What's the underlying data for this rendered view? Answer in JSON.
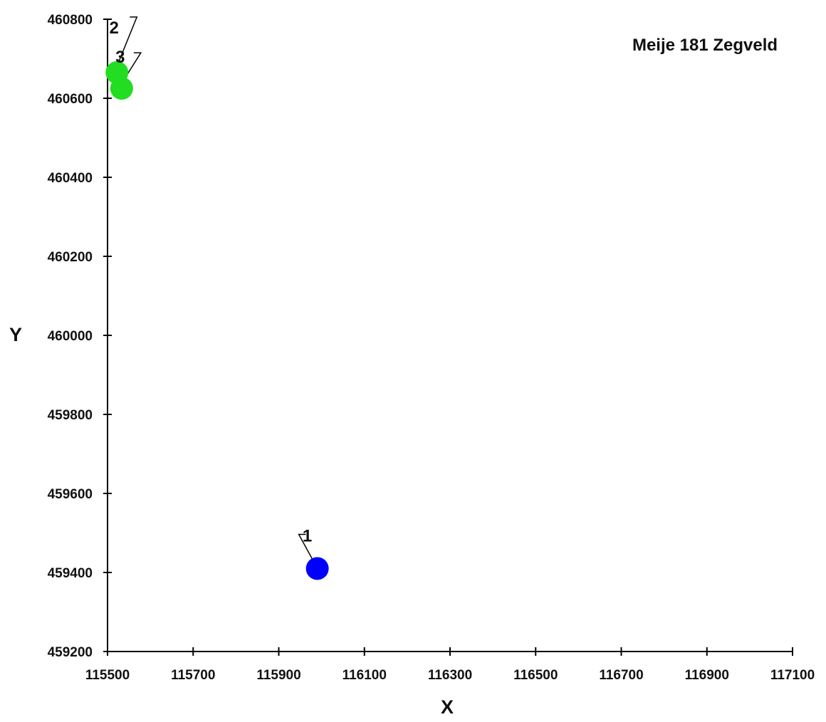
{
  "chart_data": {
    "type": "scatter",
    "title": "Meije 181 Zegveld",
    "xlabel": "X",
    "ylabel": "Y",
    "xlim": [
      115500,
      117100
    ],
    "ylim": [
      459200,
      460800
    ],
    "xticks": [
      115500,
      115700,
      115900,
      116100,
      116300,
      116500,
      116700,
      116900,
      117100
    ],
    "yticks": [
      459200,
      459400,
      459600,
      459800,
      460000,
      460200,
      460400,
      460600,
      460800
    ],
    "grid": false,
    "points": [
      {
        "label": "1",
        "x": 115990,
        "y": 459410,
        "color": "#0000ff"
      },
      {
        "label": "2",
        "x": 115522,
        "y": 460665,
        "color": "#22dd22"
      },
      {
        "label": "3",
        "x": 115533,
        "y": 460625,
        "color": "#22dd22"
      }
    ]
  }
}
